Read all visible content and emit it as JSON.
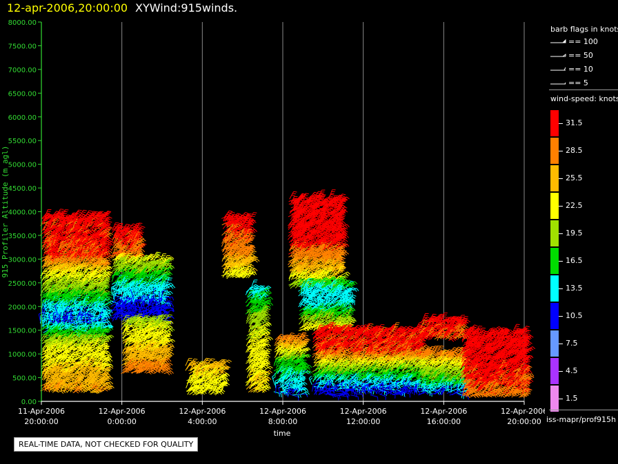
{
  "header": {
    "datetime": "12-apr-2006,20:00:00",
    "title": "XYWind:915winds."
  },
  "barb_legend": {
    "title": "barb flags in knots",
    "items": [
      "== 100",
      "== 50",
      "== 10",
      "== 5"
    ]
  },
  "speed_legend": {
    "title": "wind-speed: knots",
    "labels": [
      "31.5",
      "28.5",
      "25.5",
      "22.5",
      "19.5",
      "16.5",
      "13.5",
      "10.5",
      "7.5",
      "4.5",
      "1.5"
    ],
    "colors": [
      "#ff0000",
      "#ff8000",
      "#ffbb00",
      "#ffff00",
      "#a0e000",
      "#00dd00",
      "#00ffff",
      "#0000ff",
      "#6699ff",
      "#aa33ff",
      "#ee88ee"
    ]
  },
  "source_label": "iss-mapr/prof915h",
  "qc_notice": "REAL-TIME DATA, NOT CHECKED FOR QUALITY",
  "chart_data": {
    "type": "scatter",
    "title": "XYWind:915winds.",
    "xlabel": "time",
    "ylabel": "915 Profiler Altitude (m agl)",
    "ylim": [
      0,
      8000
    ],
    "yticks": [
      "0.00",
      "500.00",
      "1000.00",
      "1500.00",
      "2000.00",
      "2500.00",
      "3000.00",
      "3500.00",
      "4000.00",
      "4500.00",
      "5000.00",
      "5500.00",
      "6000.00",
      "6500.00",
      "7000.00",
      "7500.00",
      "8000.00"
    ],
    "xlim_hours": [
      0,
      24
    ],
    "xticks": [
      {
        "hour": 0,
        "date": "11-Apr-2006",
        "time": "20:00:00"
      },
      {
        "hour": 4,
        "date": "12-Apr-2006",
        "time": "0:00:00"
      },
      {
        "hour": 8,
        "date": "12-Apr-2006",
        "time": "4:00:00"
      },
      {
        "hour": 12,
        "date": "12-Apr-2006",
        "time": "8:00:00"
      },
      {
        "hour": 16,
        "date": "12-Apr-2006",
        "time": "12:00:00"
      },
      {
        "hour": 20,
        "date": "12-Apr-2006",
        "time": "16:00:00"
      },
      {
        "hour": 24,
        "date": "12-Apr-2006",
        "time": "20:00:00"
      }
    ],
    "grid": "vertical",
    "regions": [
      {
        "h0": 0.0,
        "h1": 3.1,
        "z0": 200,
        "z1": 3900,
        "ztop": 3900,
        "speeds": [
          [
            3900,
            31
          ],
          [
            3000,
            30
          ],
          [
            2700,
            23
          ],
          [
            2200,
            17
          ],
          [
            1700,
            11
          ],
          [
            1200,
            21
          ],
          [
            200,
            27
          ]
        ]
      },
      {
        "h0": 3.5,
        "h1": 4.7,
        "z0": 3000,
        "z1": 3600,
        "ztop": 3600,
        "speeds": [
          [
            3600,
            31
          ],
          [
            3000,
            29
          ]
        ]
      },
      {
        "h0": 3.5,
        "h1": 6.2,
        "z0": 1700,
        "z1": 3000,
        "ztop": 3000,
        "speeds": [
          [
            3000,
            22
          ],
          [
            2500,
            15
          ],
          [
            2000,
            11
          ]
        ]
      },
      {
        "h0": 4.0,
        "h1": 6.2,
        "z0": 600,
        "z1": 1700,
        "ztop": 1700,
        "speeds": [
          [
            1700,
            20
          ],
          [
            1000,
            25
          ],
          [
            600,
            29
          ]
        ]
      },
      {
        "h0": 7.2,
        "h1": 8.9,
        "z0": 150,
        "z1": 800,
        "ztop": 800,
        "speeds": [
          [
            800,
            25
          ],
          [
            150,
            22
          ]
        ]
      },
      {
        "h0": 9.0,
        "h1": 10.3,
        "z0": 2600,
        "z1": 3800,
        "ztop": 3900,
        "speeds": [
          [
            3800,
            31
          ],
          [
            3200,
            29
          ],
          [
            2600,
            22
          ]
        ]
      },
      {
        "h0": 10.2,
        "h1": 11.0,
        "z0": 200,
        "z1": 2400,
        "ztop": 2400,
        "speeds": [
          [
            2400,
            13
          ],
          [
            1500,
            21
          ],
          [
            200,
            24
          ]
        ]
      },
      {
        "h0": 11.6,
        "h1": 12.9,
        "z0": 150,
        "z1": 1300,
        "ztop": 1300,
        "speeds": [
          [
            1300,
            29
          ],
          [
            800,
            17
          ],
          [
            150,
            12
          ]
        ]
      },
      {
        "h0": 12.3,
        "h1": 14.8,
        "z0": 2400,
        "z1": 4200,
        "ztop": 4300,
        "speeds": [
          [
            4200,
            31
          ],
          [
            3300,
            31
          ],
          [
            2800,
            26
          ],
          [
            2400,
            19
          ]
        ]
      },
      {
        "h0": 12.8,
        "h1": 15.2,
        "z0": 1500,
        "z1": 2500,
        "ztop": 2500,
        "speeds": [
          [
            2500,
            16
          ],
          [
            2100,
            13
          ],
          [
            1500,
            22
          ]
        ]
      },
      {
        "h0": 13.5,
        "h1": 18.8,
        "z0": 150,
        "z1": 1500,
        "ztop": 1500,
        "speeds": [
          [
            1500,
            31
          ],
          [
            1000,
            30
          ],
          [
            700,
            20
          ],
          [
            400,
            14
          ],
          [
            150,
            10
          ]
        ]
      },
      {
        "h0": 18.8,
        "h1": 21.0,
        "z0": 150,
        "z1": 1000,
        "ztop": 1000,
        "speeds": [
          [
            1000,
            29
          ],
          [
            700,
            21
          ],
          [
            400,
            17
          ],
          [
            150,
            11
          ]
        ]
      },
      {
        "h0": 20.9,
        "h1": 24.0,
        "z0": 100,
        "z1": 1400,
        "ztop": 1500,
        "speeds": [
          [
            1400,
            31
          ],
          [
            800,
            31
          ],
          [
            300,
            30
          ],
          [
            100,
            29
          ]
        ]
      },
      {
        "h0": 18.8,
        "h1": 20.9,
        "z0": 1300,
        "z1": 1700,
        "ztop": 1700,
        "speeds": [
          [
            1700,
            31
          ],
          [
            1300,
            30
          ]
        ]
      }
    ]
  }
}
